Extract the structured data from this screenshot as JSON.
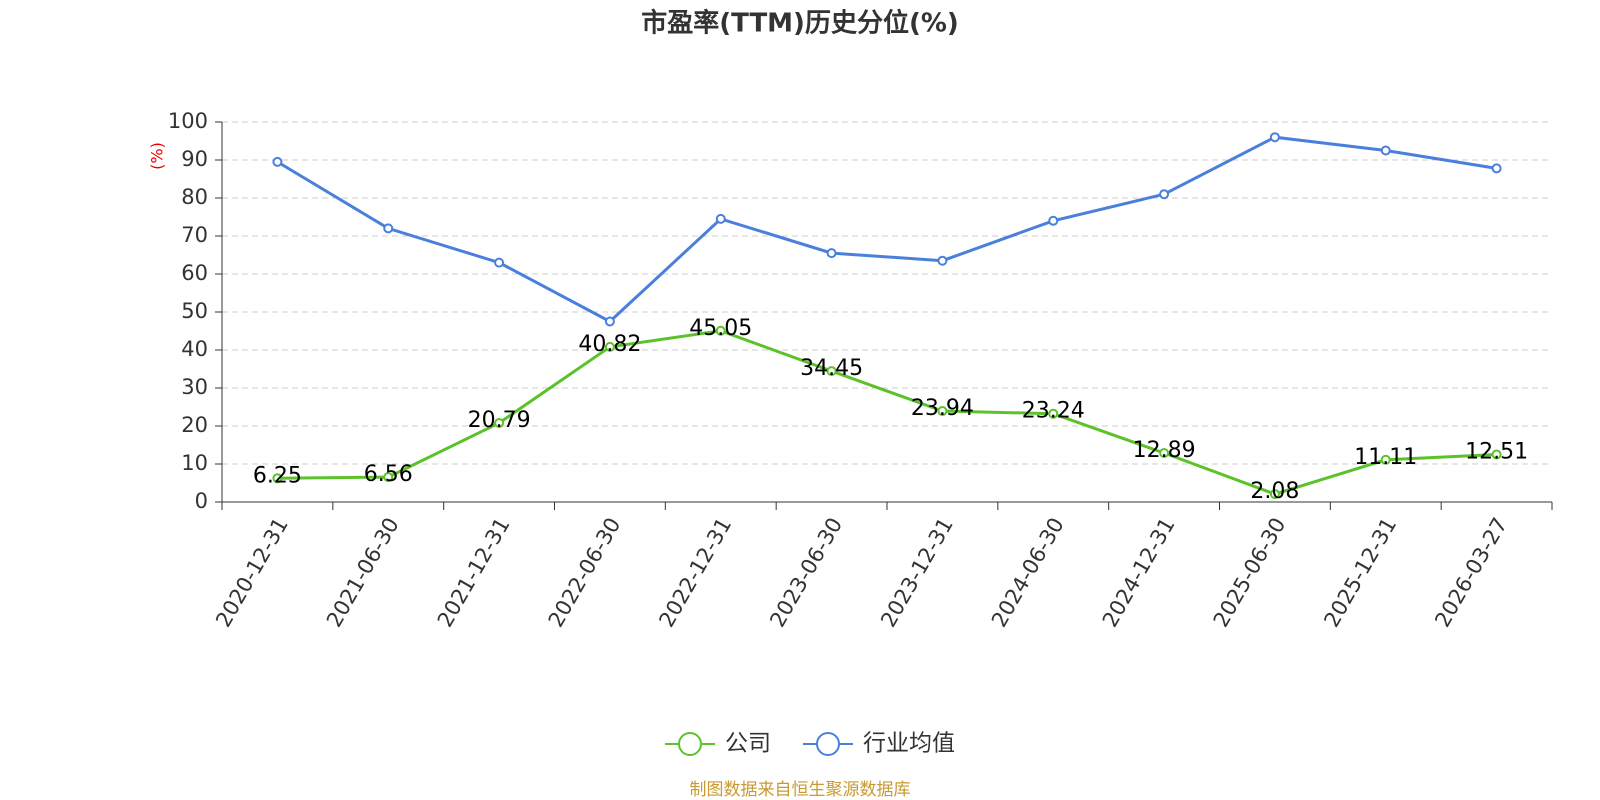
{
  "chart_data": {
    "type": "line",
    "title": "市盈率(TTM)历史分位(%)",
    "y_label": "(%)",
    "categories": [
      "2020-12-31",
      "2021-06-30",
      "2021-12-31",
      "2022-06-30",
      "2022-12-31",
      "2023-06-30",
      "2023-12-31",
      "2024-06-30",
      "2024-12-31",
      "2025-06-30",
      "2025-12-31",
      "2026-03-27"
    ],
    "series": [
      {
        "name": "公司",
        "color": "#5cc22a",
        "values": [
          6.25,
          6.56,
          20.79,
          40.82,
          45.05,
          34.45,
          23.94,
          23.24,
          12.89,
          2.08,
          11.11,
          12.51
        ]
      },
      {
        "name": "行业均值",
        "color": "#4a80dc",
        "values": [
          89.5,
          72,
          63,
          47.5,
          74.5,
          65.5,
          63.5,
          74,
          81,
          96,
          92.5,
          87.8
        ]
      }
    ],
    "ylim": [
      0,
      100
    ],
    "yticks": [
      0,
      10,
      20,
      30,
      40,
      50,
      60,
      70,
      80,
      90,
      100
    ],
    "grid": true,
    "source": "制图数据来自恒生聚源数据库"
  }
}
